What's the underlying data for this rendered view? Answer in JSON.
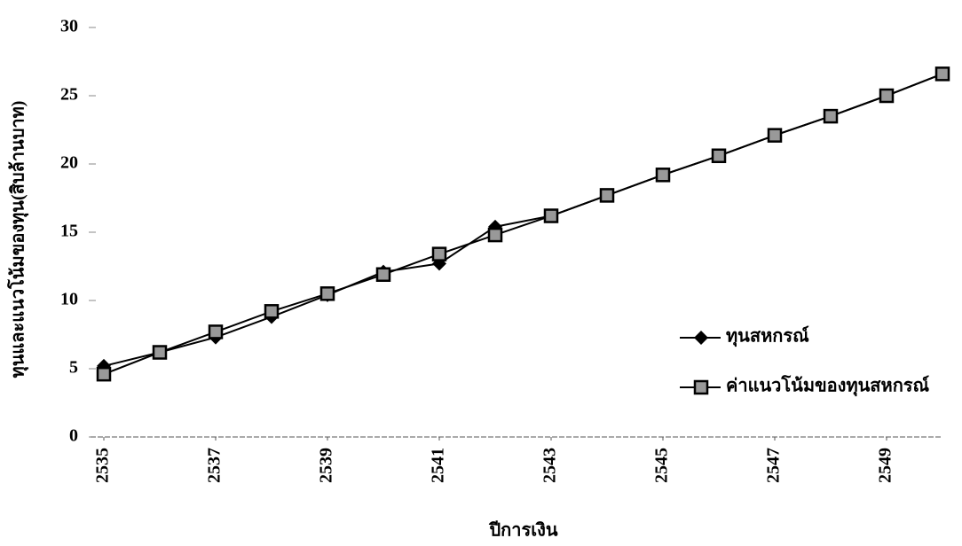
{
  "chart_data": {
    "type": "line",
    "x_label": "ปีการเงิน",
    "y_label": "ทุนและแนวโน้มของทุน(สิบล้านบาท)",
    "x": [
      2535,
      2536,
      2537,
      2538,
      2539,
      2540,
      2541,
      2542,
      2543,
      2544,
      2545,
      2546,
      2547,
      2548,
      2549,
      2550
    ],
    "series": [
      {
        "name": "ทุนสหกรณ์",
        "color": "#000000",
        "values": [
          5.2,
          6.2,
          7.3,
          8.8,
          10.4,
          12.1,
          12.7,
          15.4,
          16.2,
          17.7,
          19.2,
          20.6,
          22.1,
          23.5,
          25.0,
          26.6
        ]
      },
      {
        "name": "ค่าแนวโน้มของทุนสหกรณ์",
        "color": "#000000",
        "values": [
          4.6,
          6.2,
          7.7,
          9.2,
          10.5,
          11.9,
          13.4,
          14.8,
          16.2,
          17.7,
          19.2,
          20.6,
          22.1,
          23.5,
          25.0,
          26.6
        ]
      }
    ],
    "xlim": [
      2535,
      2550
    ],
    "xticks": [
      2535,
      2537,
      2539,
      2541,
      2543,
      2545,
      2547,
      2549
    ],
    "ylim": [
      0,
      30
    ],
    "yticks": [
      0,
      5,
      10,
      15,
      20,
      25,
      30
    ],
    "legend": "right"
  }
}
